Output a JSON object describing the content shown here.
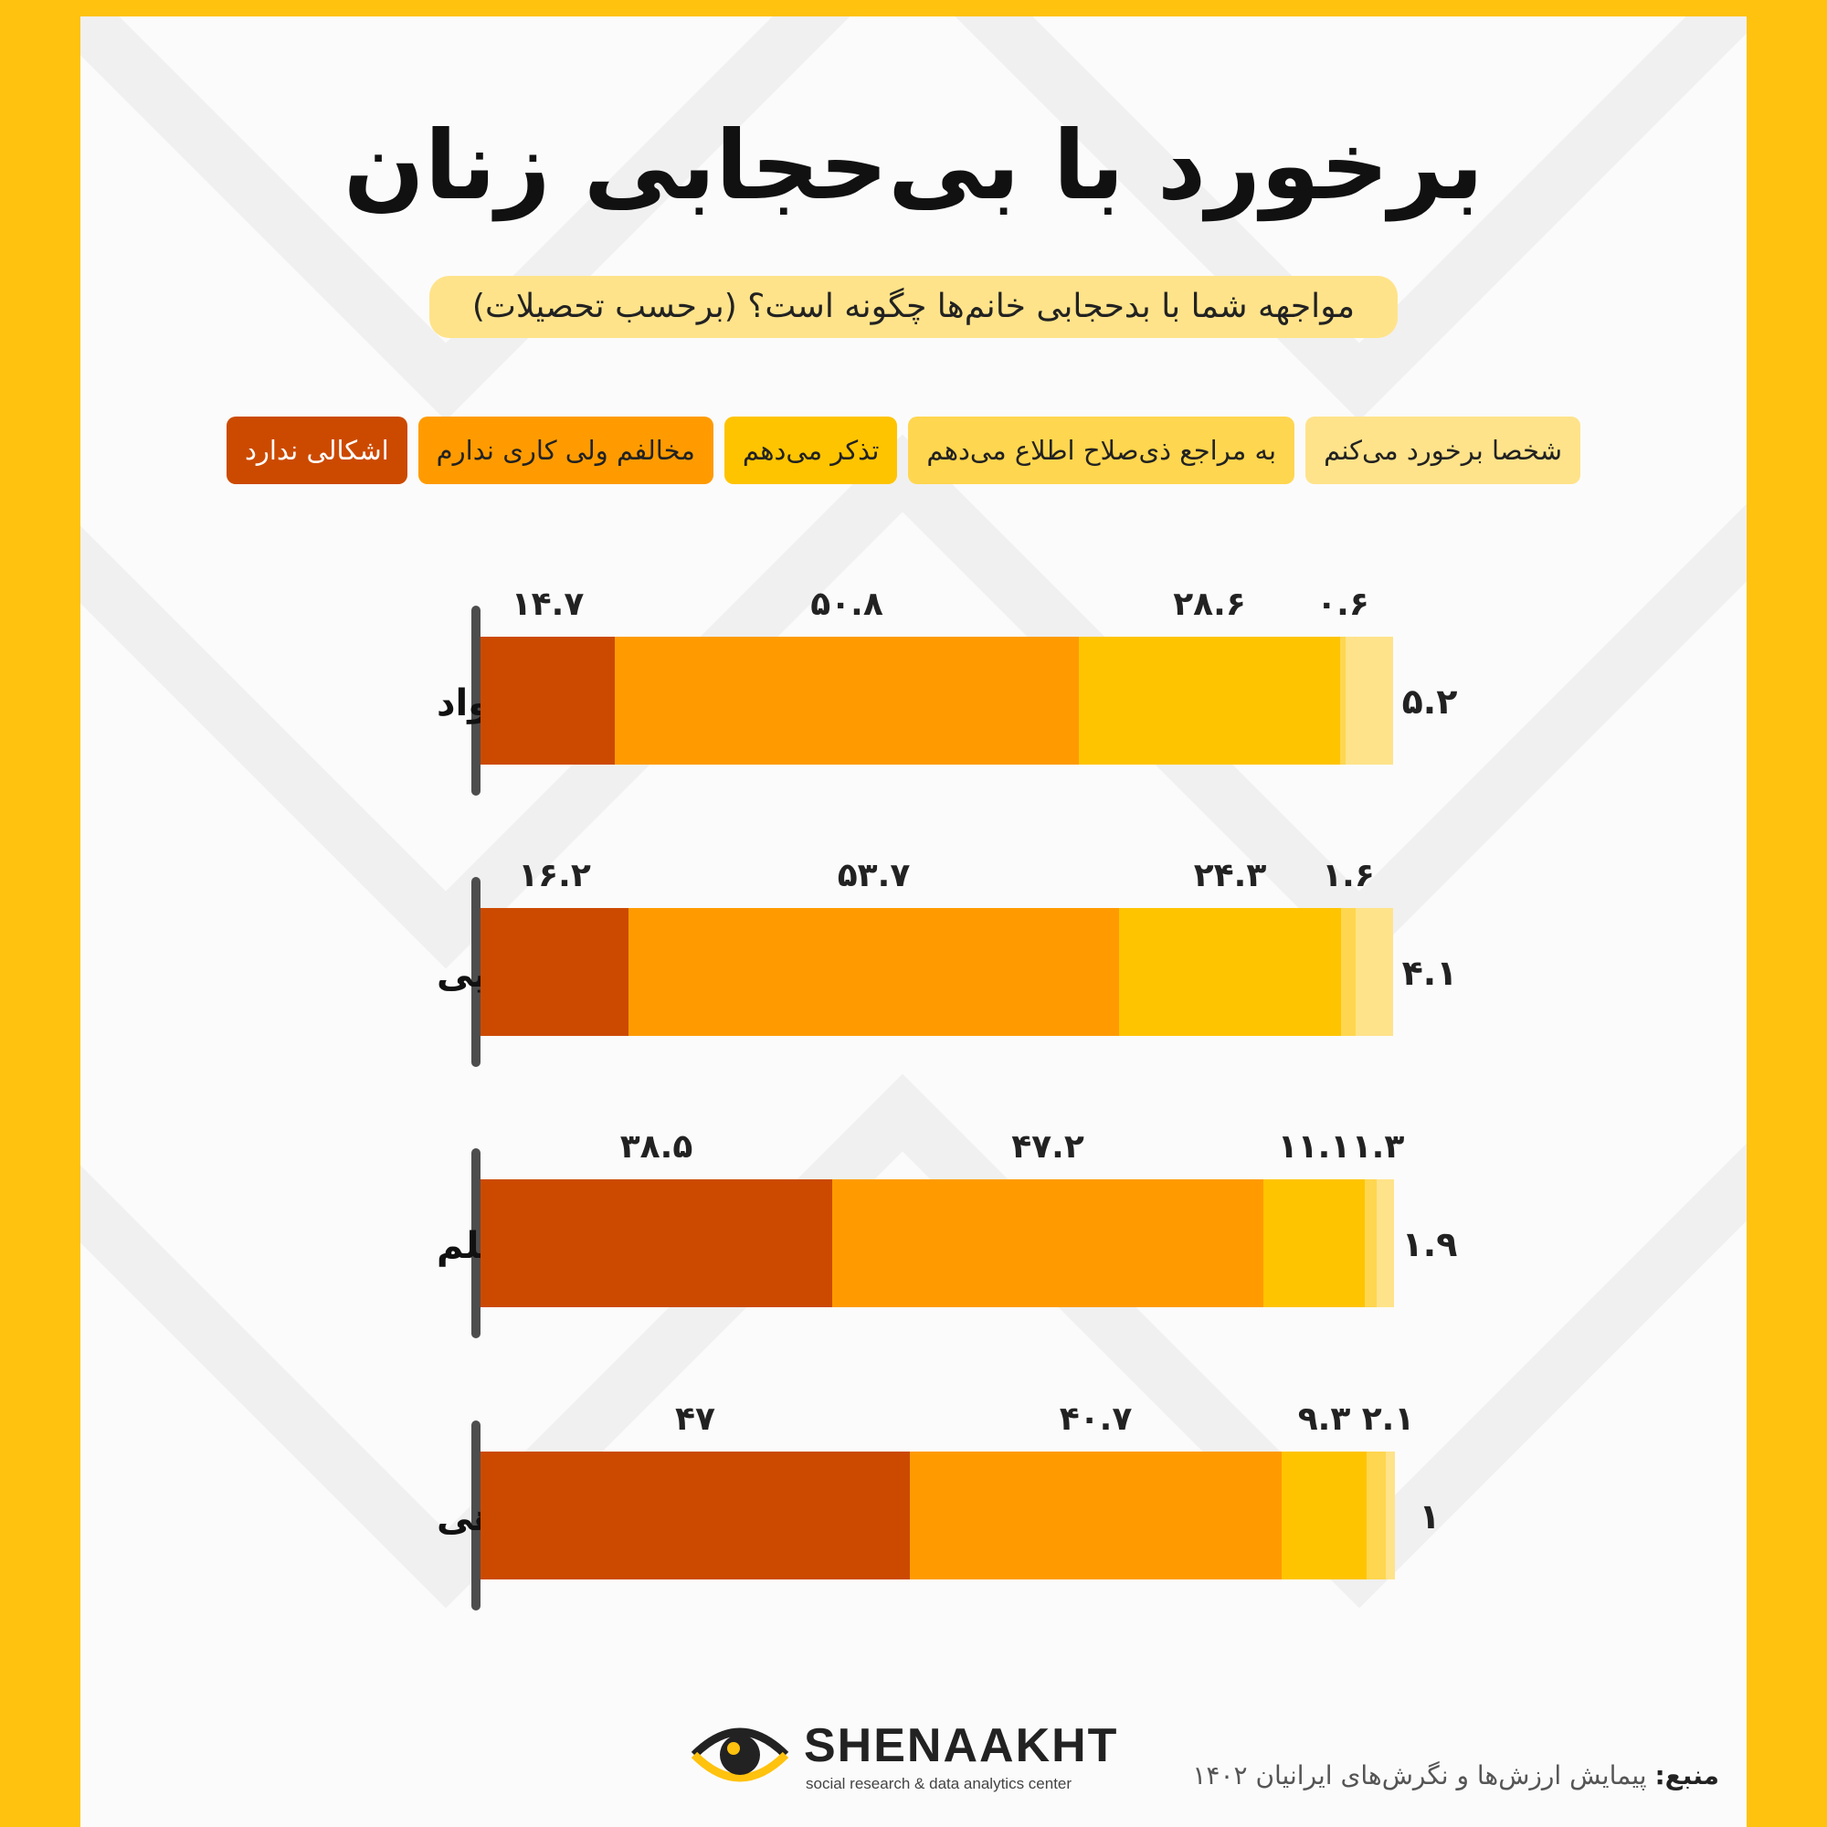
{
  "title": "برخورد با بی‌حجابی زنان",
  "subtitle": "مواجهه شما با بدحجابی خانم‌ها چگونه است؟ (برحسب تحصیلات)",
  "legend": [
    {
      "label": "شخصا برخورد می‌کنم",
      "color": "#ffe38a"
    },
    {
      "label": "به مراجع ذی‌صلاح اطلاع می‌دهم",
      "color": "#ffd64f"
    },
    {
      "label": "تذکر می‌دهم",
      "color": "#ffc400"
    },
    {
      "label": "مخالفم ولی کاری ندارم",
      "color": "#ff9b00"
    },
    {
      "label": "اشکالی ندارد",
      "color": "#cc4a00"
    }
  ],
  "chart_data": {
    "type": "bar",
    "orientation": "horizontal",
    "stacked": true,
    "categories": [
      "بی‌سواد",
      "ابتدایی",
      "متوسطه و دیپلم",
      "دانشگاهی"
    ],
    "series": [
      {
        "name": "اشکالی ندارد",
        "values": [
          14.7,
          16.2,
          38.5,
          47
        ],
        "labels": [
          "۱۴.۷",
          "۱۶.۲",
          "۳۸.۵",
          "۴۷"
        ],
        "color": "#cc4a00"
      },
      {
        "name": "مخالفم ولی کاری ندارم",
        "values": [
          50.8,
          53.7,
          47.2,
          40.7
        ],
        "labels": [
          "۵۰.۸",
          "۵۳.۷",
          "۴۷.۲",
          "۴۰.۷"
        ],
        "color": "#ff9b00"
      },
      {
        "name": "تذکر می‌دهم",
        "values": [
          28.6,
          24.3,
          11.1,
          9.3
        ],
        "labels": [
          "۲۸.۶",
          "۲۴.۳",
          "۱۱.۱",
          "۹.۳"
        ],
        "color": "#ffc400"
      },
      {
        "name": "به مراجع ذی‌صلاح اطلاع می‌دهم",
        "values": [
          0.6,
          1.6,
          1.3,
          2.1
        ],
        "labels": [
          "۰.۶",
          "۱.۶",
          "۱.۳",
          "۲.۱"
        ],
        "color": "#ffd64f"
      },
      {
        "name": "شخصا برخورد می‌کنم",
        "values": [
          5.2,
          4.1,
          1.9,
          1
        ],
        "labels": [
          "۵.۲",
          "۴.۱",
          "۱.۹",
          "۱"
        ],
        "color": "#ffe38a"
      }
    ],
    "xlim": [
      0,
      100
    ]
  },
  "logo": {
    "name": "SHENAAKHT",
    "tagline": "social research & data analytics center"
  },
  "source": {
    "label": "منبع:",
    "text": "پیمایش ارزش‌ها و نگرش‌های ایرانیان ۱۴۰۲"
  },
  "colors": {
    "background_frame": "#ffc20e",
    "panel": "#fbfbfb",
    "axis": "#4d4d4d"
  }
}
